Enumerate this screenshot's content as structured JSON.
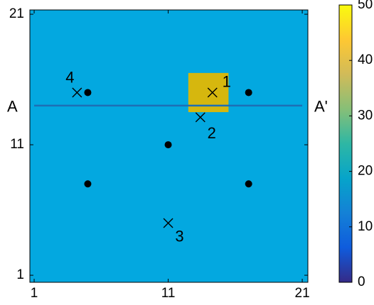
{
  "chart_data": {
    "type": "heatmap",
    "xlim": [
      0.68,
      21.42
    ],
    "ylim": [
      0.46,
      21.33
    ],
    "xticks": [
      1,
      11,
      21
    ],
    "yticks": [
      1,
      11,
      21
    ],
    "background": {
      "value": 20,
      "color": "#03a8e0"
    },
    "patches": [
      {
        "x": [
          12.5,
          15.5
        ],
        "y": [
          13.5,
          16.5
        ],
        "value": 42,
        "color": "#d6b70e"
      }
    ],
    "section_line": {
      "x": [
        1,
        21
      ],
      "y": 14,
      "color": "#1d6fb5",
      "labels": [
        "A",
        "A'"
      ]
    },
    "wells": {
      "x": [
        5,
        17,
        11,
        5,
        17
      ],
      "y": [
        15,
        15,
        11,
        8,
        8
      ]
    },
    "points": {
      "x": [
        14.3,
        13.4,
        11,
        4.2
      ],
      "y": [
        15,
        13.1,
        5,
        15
      ],
      "labels": [
        "1",
        "2",
        "3",
        "4"
      ]
    },
    "colorbar": {
      "clim": [
        0,
        50
      ],
      "ticks": [
        0,
        10,
        20,
        30,
        40,
        50
      ],
      "colors": [
        "#352a87",
        "#0f5cdd",
        "#1481d6",
        "#06a4ca",
        "#2eb7a4",
        "#87bf77",
        "#d1bb59",
        "#fec832",
        "#f9fb0e"
      ]
    }
  }
}
